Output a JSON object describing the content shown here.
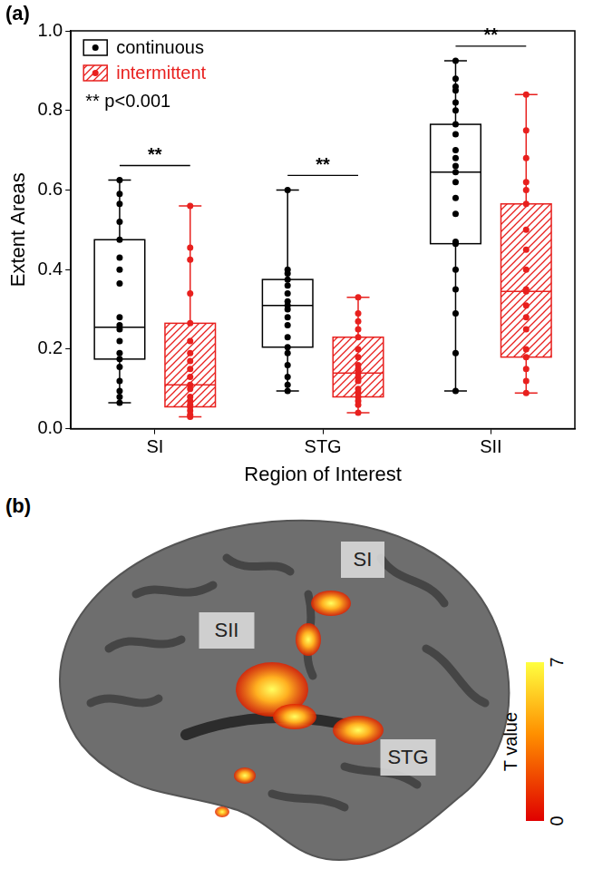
{
  "chart_data": {
    "type": "boxplot",
    "panel_label": "(a)",
    "x_label": "Region of Interest",
    "y_label": "Extent Areas",
    "categories": [
      "SI",
      "STG",
      "SII"
    ],
    "ylim": [
      0,
      1
    ],
    "yticks": [
      {
        "value": 0,
        "label": "0.0"
      },
      0.2,
      0.4,
      0.6,
      0.8,
      {
        "value": 1,
        "label": "1.0"
      }
    ],
    "grid": false,
    "legend": "top-left",
    "note": "** p<0.001",
    "annotations": [
      {
        "category": "SI",
        "text": "**"
      },
      {
        "category": "STG",
        "text": "**"
      },
      {
        "category": "SII",
        "text": "**"
      }
    ],
    "series": [
      {
        "name": "continuous",
        "color": "#000000",
        "boxes": [
          {
            "min": 0.065,
            "q1": 0.175,
            "median": 0.255,
            "q3": 0.475,
            "max": 0.625
          },
          {
            "min": 0.095,
            "q1": 0.205,
            "median": 0.31,
            "q3": 0.375,
            "max": 0.6
          },
          {
            "min": 0.095,
            "q1": 0.465,
            "median": 0.645,
            "q3": 0.765,
            "max": 0.925
          }
        ],
        "points": [
          [
            0.625,
            0.59,
            0.565,
            0.52,
            0.475,
            0.43,
            0.4,
            0.365,
            0.28,
            0.26,
            0.25,
            0.22,
            0.19,
            0.175,
            0.155,
            0.12,
            0.095,
            0.08,
            0.065
          ],
          [
            0.6,
            0.4,
            0.39,
            0.375,
            0.36,
            0.34,
            0.32,
            0.31,
            0.3,
            0.28,
            0.26,
            0.23,
            0.205,
            0.19,
            0.16,
            0.13,
            0.11,
            0.095
          ],
          [
            0.925,
            0.88,
            0.86,
            0.85,
            0.82,
            0.8,
            0.765,
            0.74,
            0.7,
            0.68,
            0.66,
            0.645,
            0.62,
            0.58,
            0.54,
            0.47,
            0.465,
            0.4,
            0.35,
            0.29,
            0.19,
            0.095
          ]
        ]
      },
      {
        "name": "intermittent",
        "color": "#e8201e",
        "boxes": [
          {
            "min": 0.03,
            "q1": 0.055,
            "median": 0.11,
            "q3": 0.265,
            "max": 0.56
          },
          {
            "min": 0.04,
            "q1": 0.08,
            "median": 0.14,
            "q3": 0.23,
            "max": 0.33
          },
          {
            "min": 0.09,
            "q1": 0.18,
            "median": 0.345,
            "q3": 0.565,
            "max": 0.84
          }
        ],
        "points": [
          [
            0.56,
            0.455,
            0.425,
            0.34,
            0.265,
            0.22,
            0.19,
            0.17,
            0.15,
            0.13,
            0.11,
            0.1,
            0.08,
            0.07,
            0.06,
            0.055,
            0.045,
            0.035,
            0.03
          ],
          [
            0.33,
            0.29,
            0.27,
            0.25,
            0.23,
            0.2,
            0.18,
            0.16,
            0.15,
            0.14,
            0.13,
            0.12,
            0.1,
            0.09,
            0.08,
            0.07,
            0.06,
            0.04
          ],
          [
            0.84,
            0.75,
            0.68,
            0.62,
            0.6,
            0.565,
            0.5,
            0.45,
            0.4,
            0.35,
            0.345,
            0.31,
            0.28,
            0.25,
            0.2,
            0.18,
            0.15,
            0.12,
            0.09
          ]
        ]
      }
    ]
  },
  "brain_panel": {
    "panel_label": "(b)",
    "regions": [
      "SI",
      "SII",
      "STG"
    ],
    "colorbar": {
      "title": "T value",
      "range": [
        0,
        7
      ],
      "ticks": [
        0,
        7
      ]
    }
  }
}
